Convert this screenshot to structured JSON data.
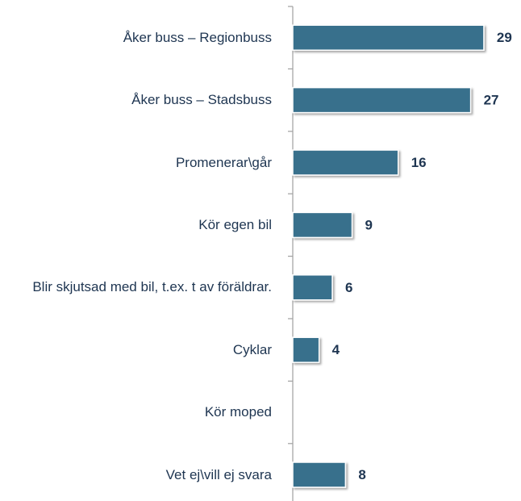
{
  "chart_data": {
    "type": "bar",
    "orientation": "horizontal",
    "categories": [
      "Åker buss – Regionbuss",
      "Åker buss – Stadsbuss",
      "Promenerar\\går",
      "Kör egen bil",
      "Blir skjutsad med bil, t.ex. t av föräldrar.",
      "Cyklar",
      "Kör moped",
      "Vet ej\\vill ej svara"
    ],
    "values": [
      29,
      27,
      16,
      9,
      6,
      4,
      null,
      8
    ],
    "color": "#386f8c"
  }
}
